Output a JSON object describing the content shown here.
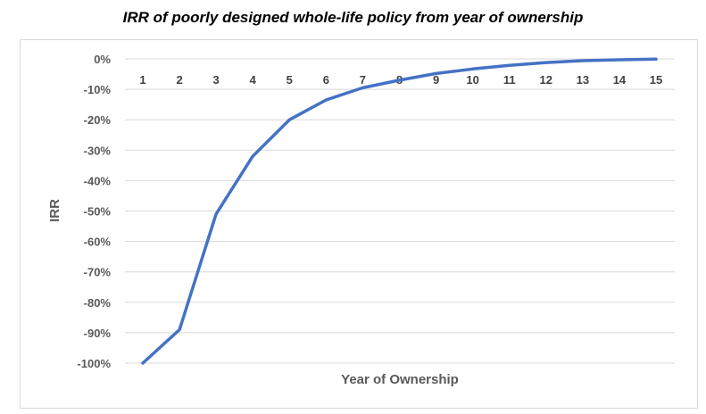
{
  "chart_data": {
    "type": "line",
    "title": "IRR of poorly designed whole-life policy from year of ownership",
    "xlabel": "Year of Ownership",
    "ylabel": "IRR",
    "categories": [
      "1",
      "2",
      "3",
      "4",
      "5",
      "6",
      "7",
      "8",
      "9",
      "10",
      "11",
      "12",
      "13",
      "14",
      "15"
    ],
    "series": [
      {
        "values": [
          -100,
          -89,
          -51,
          -32,
          -20,
          -13.5,
          -9.5,
          -7,
          -4.8,
          -3.3,
          -2.1,
          -1.2,
          -0.6,
          -0.3,
          -0.1
        ]
      }
    ],
    "yticks": [
      "0%",
      "-10%",
      "-20%",
      "-30%",
      "-40%",
      "-50%",
      "-60%",
      "-70%",
      "-80%",
      "-90%",
      "-100%"
    ],
    "ylim": [
      -100,
      0
    ],
    "grid": true,
    "legend": "none",
    "colors": {
      "line": "#4472c4",
      "grid": "#d9d9d9",
      "frame": "#d9d9d9"
    }
  }
}
